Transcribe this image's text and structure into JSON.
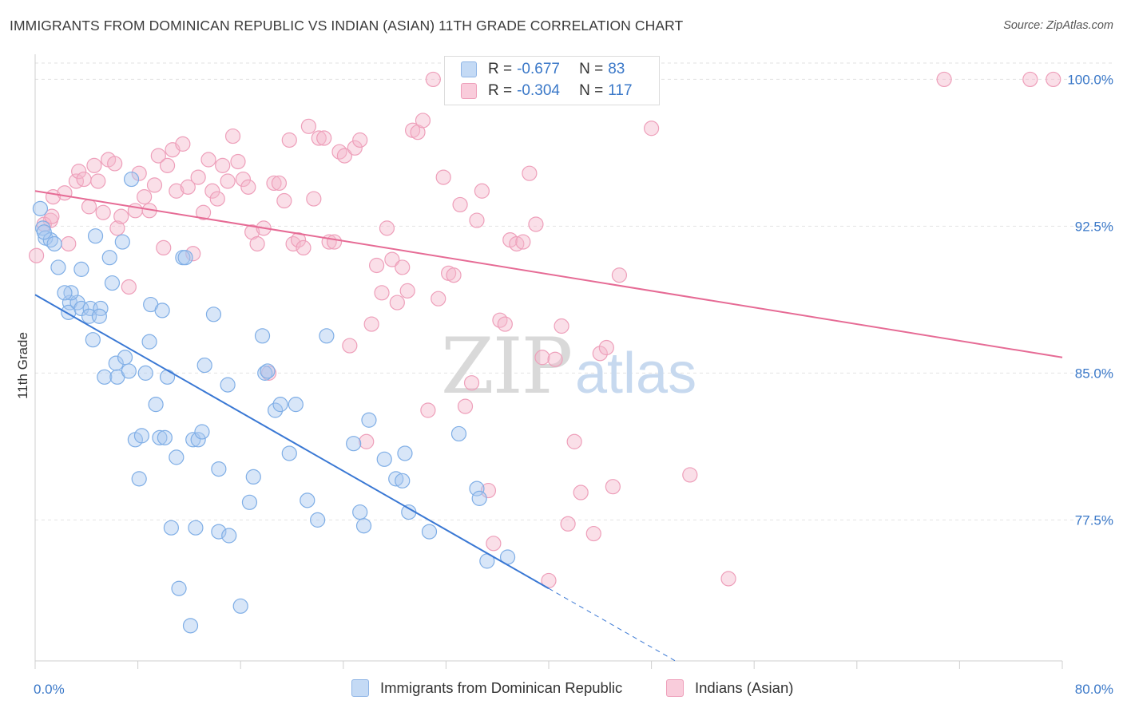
{
  "title": "IMMIGRANTS FROM DOMINICAN REPUBLIC VS INDIAN (ASIAN) 11TH GRADE CORRELATION CHART",
  "source": "Source: ZipAtlas.com",
  "watermark": {
    "zip": "ZIP",
    "atlas": "atlas"
  },
  "legend": {
    "series1": {
      "r_label": "R = ",
      "r_value": "-0.677",
      "n_label": "N = ",
      "n_value": "83",
      "color": "#a9c8f0"
    },
    "series2": {
      "r_label": "R = ",
      "r_value": "-0.304",
      "n_label": "N = ",
      "n_value": "117",
      "color": "#f5b8cb"
    }
  },
  "chart_data": {
    "type": "scatter",
    "title": "IMMIGRANTS FROM DOMINICAN REPUBLIC VS INDIAN (ASIAN) 11TH GRADE CORRELATION CHART",
    "xlabel": "",
    "ylabel": "11th Grade",
    "xlim": [
      0,
      80
    ],
    "ylim": [
      70.3,
      101.2
    ],
    "x_tick_labels": [
      "0.0%",
      "80.0%"
    ],
    "y_ticks": [
      77.5,
      85.0,
      92.5,
      100.0
    ],
    "y_tick_labels": [
      "77.5%",
      "85.0%",
      "92.5%",
      "100.0%"
    ],
    "grid": true,
    "legend_position": "top-center",
    "series": [
      {
        "name": "Immigrants from Dominican Republic",
        "color": "#3a78d4",
        "fill": "#a9c8f0",
        "trend": {
          "x0": 0,
          "y0": 89.0,
          "x1": 40.0,
          "y1": 74.0,
          "dash_to_x": 50.0
        },
        "points": [
          [
            0.4,
            93.4
          ],
          [
            0.6,
            92.4
          ],
          [
            0.8,
            91.9
          ],
          [
            1.2,
            91.8
          ],
          [
            1.5,
            91.6
          ],
          [
            0.7,
            92.2
          ],
          [
            1.8,
            90.4
          ],
          [
            2.7,
            88.6
          ],
          [
            2.6,
            88.1
          ],
          [
            3.3,
            88.6
          ],
          [
            3.6,
            88.3
          ],
          [
            4.3,
            88.3
          ],
          [
            5.1,
            88.3
          ],
          [
            4.2,
            87.9
          ],
          [
            5.0,
            87.9
          ],
          [
            2.8,
            89.1
          ],
          [
            2.3,
            89.1
          ],
          [
            3.6,
            90.3
          ],
          [
            5.8,
            90.9
          ],
          [
            6.0,
            89.6
          ],
          [
            6.8,
            91.7
          ],
          [
            4.7,
            92.0
          ],
          [
            7.5,
            94.9
          ],
          [
            11.5,
            90.9
          ],
          [
            11.7,
            90.9
          ],
          [
            9.0,
            88.5
          ],
          [
            9.9,
            88.2
          ],
          [
            13.9,
            88.0
          ],
          [
            4.5,
            86.7
          ],
          [
            8.9,
            86.6
          ],
          [
            6.3,
            85.5
          ],
          [
            7.0,
            85.8
          ],
          [
            5.4,
            84.8
          ],
          [
            6.4,
            84.8
          ],
          [
            7.3,
            85.1
          ],
          [
            8.6,
            85.0
          ],
          [
            10.3,
            84.8
          ],
          [
            13.2,
            85.4
          ],
          [
            15.0,
            84.4
          ],
          [
            17.7,
            86.9
          ],
          [
            22.7,
            86.9
          ],
          [
            17.9,
            85.0
          ],
          [
            18.1,
            85.1
          ],
          [
            9.4,
            83.4
          ],
          [
            18.7,
            83.1
          ],
          [
            19.1,
            83.4
          ],
          [
            20.3,
            83.4
          ],
          [
            26.0,
            82.6
          ],
          [
            7.8,
            81.6
          ],
          [
            8.3,
            81.8
          ],
          [
            9.7,
            81.7
          ],
          [
            10.1,
            81.7
          ],
          [
            12.3,
            81.6
          ],
          [
            12.7,
            81.6
          ],
          [
            13.0,
            82.0
          ],
          [
            24.8,
            81.4
          ],
          [
            33.0,
            81.9
          ],
          [
            11.0,
            80.7
          ],
          [
            19.8,
            80.9
          ],
          [
            27.2,
            80.6
          ],
          [
            28.8,
            80.9
          ],
          [
            14.3,
            80.1
          ],
          [
            8.1,
            79.6
          ],
          [
            17.0,
            79.7
          ],
          [
            28.1,
            79.6
          ],
          [
            28.6,
            79.5
          ],
          [
            34.4,
            79.1
          ],
          [
            34.6,
            78.6
          ],
          [
            16.7,
            78.4
          ],
          [
            21.2,
            78.5
          ],
          [
            29.1,
            77.9
          ],
          [
            22.0,
            77.5
          ],
          [
            25.3,
            77.9
          ],
          [
            25.6,
            77.2
          ],
          [
            10.6,
            77.1
          ],
          [
            12.5,
            77.1
          ],
          [
            14.3,
            76.9
          ],
          [
            15.1,
            76.7
          ],
          [
            30.7,
            76.9
          ],
          [
            35.2,
            75.4
          ],
          [
            36.8,
            75.6
          ],
          [
            11.2,
            74.0
          ],
          [
            12.1,
            72.1
          ],
          [
            16.0,
            73.1
          ]
        ]
      },
      {
        "name": "Indians (Asian)",
        "color": "#e66b95",
        "fill": "#f5b8cb",
        "trend": {
          "x0": 0,
          "y0": 94.3,
          "x1": 80.0,
          "y1": 85.8
        },
        "points": [
          [
            0.1,
            91.0
          ],
          [
            1.2,
            92.8
          ],
          [
            0.7,
            92.6
          ],
          [
            1.3,
            93.0
          ],
          [
            1.4,
            94.0
          ],
          [
            2.3,
            94.2
          ],
          [
            2.6,
            91.6
          ],
          [
            3.2,
            94.8
          ],
          [
            3.4,
            95.3
          ],
          [
            3.8,
            94.9
          ],
          [
            4.2,
            93.5
          ],
          [
            4.6,
            95.6
          ],
          [
            4.9,
            94.8
          ],
          [
            5.3,
            93.2
          ],
          [
            5.7,
            95.9
          ],
          [
            6.2,
            95.7
          ],
          [
            6.4,
            92.4
          ],
          [
            6.7,
            93.0
          ],
          [
            7.3,
            89.4
          ],
          [
            7.8,
            93.3
          ],
          [
            8.1,
            95.2
          ],
          [
            8.5,
            94.0
          ],
          [
            8.9,
            93.3
          ],
          [
            9.3,
            94.6
          ],
          [
            9.6,
            96.1
          ],
          [
            10.0,
            91.4
          ],
          [
            10.3,
            95.6
          ],
          [
            10.7,
            96.4
          ],
          [
            11.0,
            94.3
          ],
          [
            11.5,
            96.7
          ],
          [
            11.9,
            94.5
          ],
          [
            12.3,
            91.1
          ],
          [
            12.7,
            95.0
          ],
          [
            13.1,
            93.2
          ],
          [
            13.5,
            95.9
          ],
          [
            13.8,
            94.3
          ],
          [
            14.2,
            93.9
          ],
          [
            14.6,
            95.6
          ],
          [
            15.0,
            94.8
          ],
          [
            15.4,
            97.1
          ],
          [
            15.8,
            95.8
          ],
          [
            16.2,
            94.9
          ],
          [
            16.6,
            94.5
          ],
          [
            16.9,
            92.2
          ],
          [
            17.3,
            91.6
          ],
          [
            17.8,
            92.4
          ],
          [
            18.2,
            85.0
          ],
          [
            18.6,
            94.7
          ],
          [
            19.0,
            94.7
          ],
          [
            19.4,
            93.8
          ],
          [
            19.8,
            96.9
          ],
          [
            20.1,
            91.6
          ],
          [
            20.5,
            91.8
          ],
          [
            20.9,
            91.4
          ],
          [
            21.3,
            97.6
          ],
          [
            21.7,
            93.9
          ],
          [
            22.1,
            97.0
          ],
          [
            22.5,
            97.0
          ],
          [
            22.9,
            91.7
          ],
          [
            23.3,
            91.7
          ],
          [
            23.7,
            96.3
          ],
          [
            24.1,
            96.1
          ],
          [
            24.5,
            86.4
          ],
          [
            24.9,
            96.5
          ],
          [
            25.3,
            96.9
          ],
          [
            25.8,
            81.5
          ],
          [
            26.2,
            87.5
          ],
          [
            26.6,
            90.5
          ],
          [
            27.0,
            89.1
          ],
          [
            27.4,
            92.4
          ],
          [
            27.8,
            90.8
          ],
          [
            28.2,
            88.6
          ],
          [
            28.6,
            90.4
          ],
          [
            29.0,
            89.2
          ],
          [
            29.4,
            97.4
          ],
          [
            29.8,
            97.3
          ],
          [
            30.2,
            97.9
          ],
          [
            30.6,
            83.1
          ],
          [
            31.0,
            100.0
          ],
          [
            31.4,
            88.8
          ],
          [
            31.8,
            95.0
          ],
          [
            32.2,
            90.1
          ],
          [
            32.6,
            90.0
          ],
          [
            33.1,
            93.6
          ],
          [
            33.5,
            83.3
          ],
          [
            34.0,
            84.5
          ],
          [
            34.4,
            92.8
          ],
          [
            34.8,
            94.3
          ],
          [
            35.3,
            79.0
          ],
          [
            35.7,
            76.3
          ],
          [
            36.2,
            87.7
          ],
          [
            36.6,
            87.5
          ],
          [
            37.0,
            91.8
          ],
          [
            37.5,
            91.6
          ],
          [
            38.0,
            91.7
          ],
          [
            38.5,
            95.2
          ],
          [
            39.0,
            92.6
          ],
          [
            39.5,
            85.8
          ],
          [
            40.0,
            74.4
          ],
          [
            40.5,
            85.7
          ],
          [
            41.0,
            87.4
          ],
          [
            41.5,
            77.3
          ],
          [
            42.0,
            81.5
          ],
          [
            42.5,
            78.9
          ],
          [
            43.0,
            100.0
          ],
          [
            43.5,
            76.8
          ],
          [
            44.0,
            86.0
          ],
          [
            44.5,
            86.3
          ],
          [
            45.0,
            79.2
          ],
          [
            45.5,
            90.0
          ],
          [
            48.0,
            97.5
          ],
          [
            51.0,
            79.8
          ],
          [
            54.0,
            74.5
          ],
          [
            70.8,
            100.0
          ],
          [
            77.5,
            100.0
          ],
          [
            79.3,
            100.0
          ]
        ]
      }
    ]
  },
  "bottom_legend": {
    "item1": "Immigrants from Dominican Republic",
    "item2": "Indians (Asian)"
  }
}
